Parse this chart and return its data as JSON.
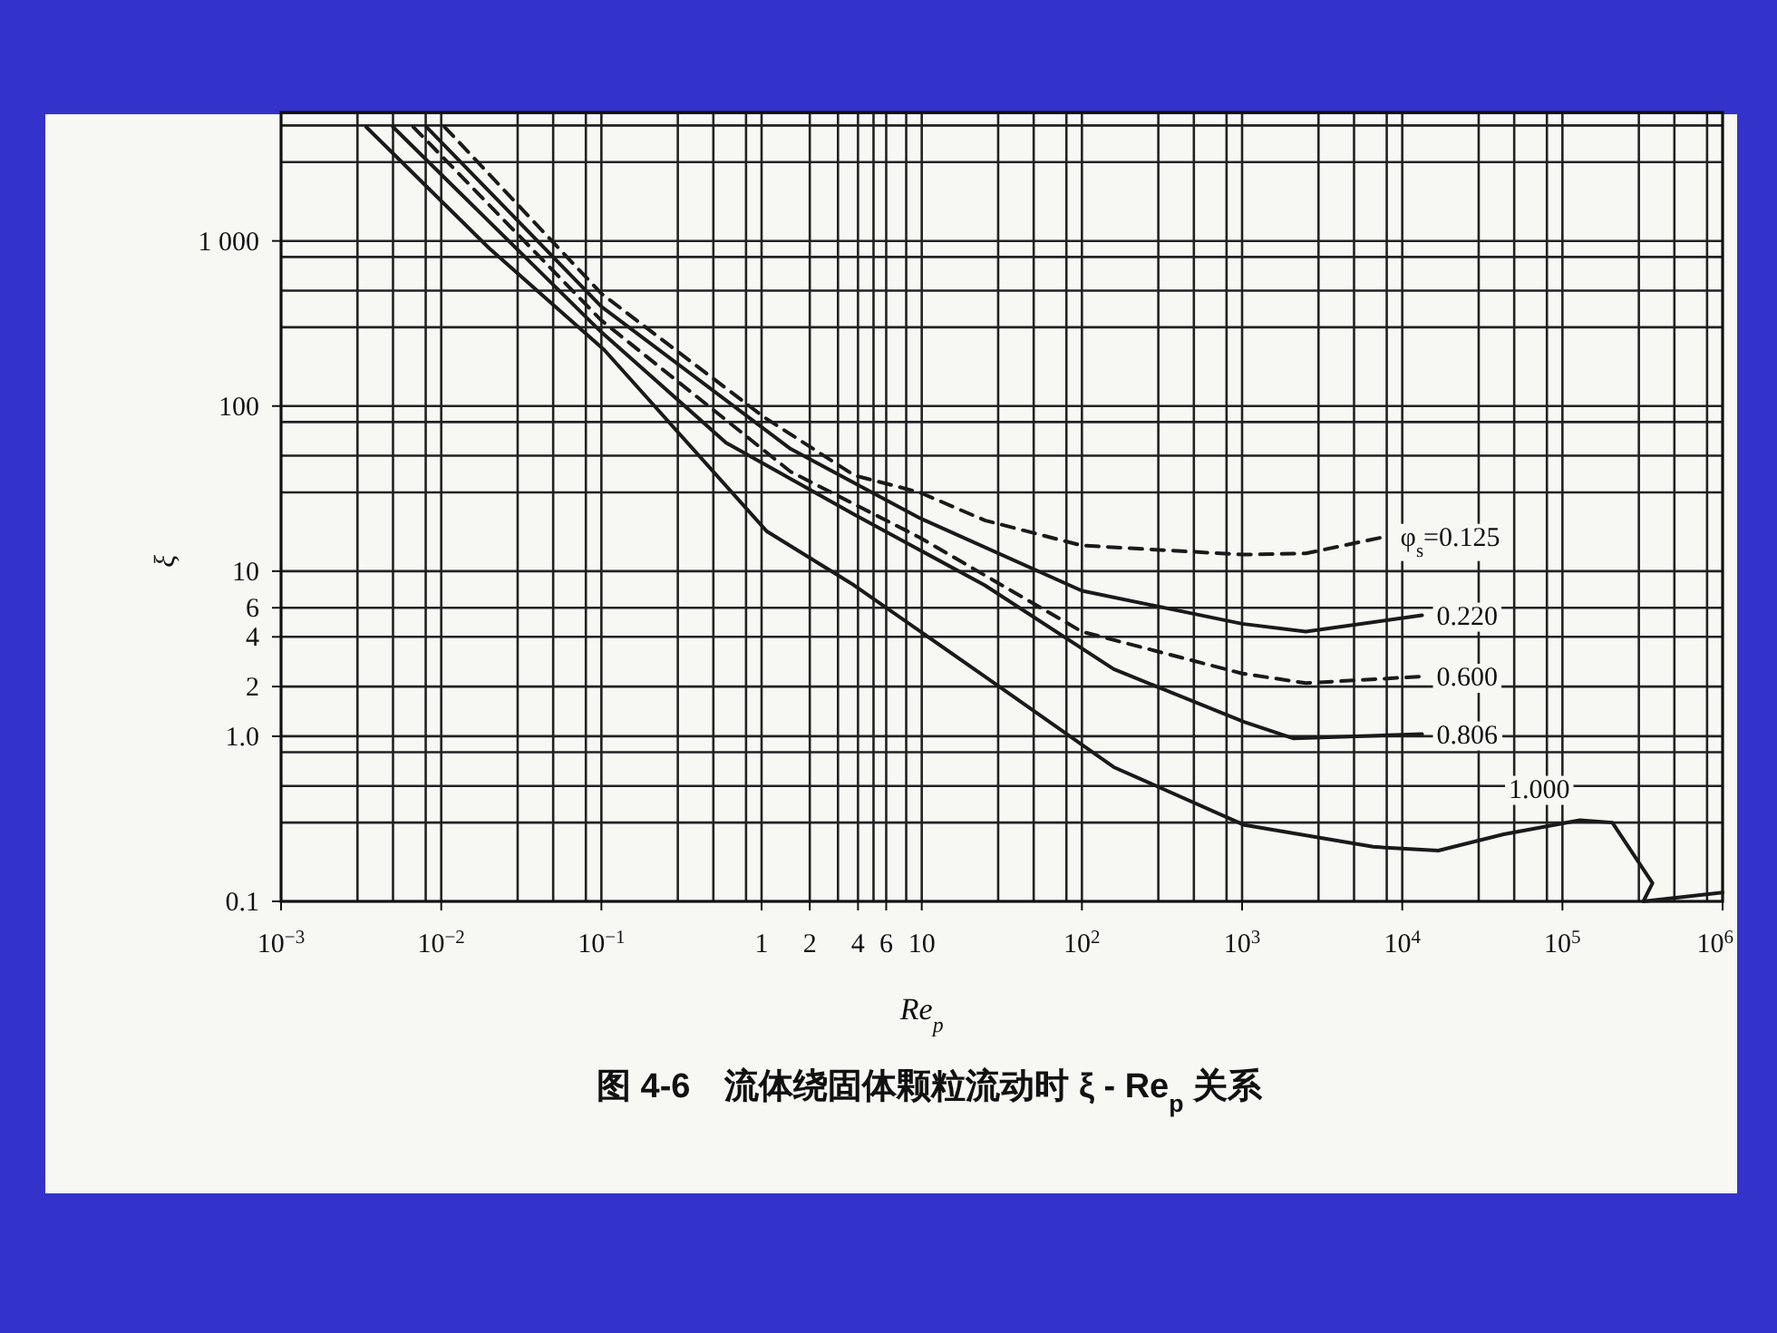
{
  "chart_data": {
    "type": "line",
    "title": "图 4-6　流体绕固体颗粒流动时 ξ - Re$_{p}$ 关系",
    "xlabel": "Re$_{p}$",
    "ylabel": "ξ",
    "log": "xy",
    "grid": true,
    "xlim": [
      0.001,
      1000000
    ],
    "ylim": [
      0.1,
      6000
    ],
    "xticks": [
      {
        "value": 0.001,
        "label": "10$^{−3}$"
      },
      {
        "value": 0.01,
        "label": "10$^{−2}$"
      },
      {
        "value": 0.1,
        "label": "10$^{−1}$"
      },
      1,
      2,
      4,
      6,
      10,
      {
        "value": 100,
        "label": "10$^{2}$"
      },
      {
        "value": 1000,
        "label": "10$^{3}$"
      },
      {
        "value": 10000,
        "label": "10$^{4}$"
      },
      {
        "value": 100000,
        "label": "10$^{5}$"
      },
      {
        "value": 1000000,
        "label": "10$^{6}$"
      }
    ],
    "yticks": [
      0.1,
      {
        "value": 1,
        "label": "1.0"
      },
      2,
      4,
      6,
      10,
      100,
      {
        "value": 1000,
        "label": "1 000"
      }
    ],
    "series": [
      {
        "name": "φ$_{s}$=0.125",
        "color": "#1a1a1a",
        "line_style": "dashed",
        "x": [
          0.0105,
          0.1,
          1.03,
          3.8,
          9.7,
          24.8,
          100,
          1000,
          2500,
          7900
        ],
        "values": [
          4900,
          480,
          86,
          38,
          30,
          20.3,
          14.3,
          12.6,
          12.8,
          16.2
        ]
      },
      {
        "name": "0.220",
        "color": "#1a1a1a",
        "line_style": "solid",
        "x": [
          0.0081,
          0.1,
          1.52,
          9.7,
          100,
          1000,
          2500,
          13300
        ],
        "values": [
          4900,
          400,
          55,
          21,
          7.6,
          4.8,
          4.3,
          5.4
        ]
      },
      {
        "name": "0.600",
        "color": "#1a1a1a",
        "line_style": "dashed",
        "x": [
          0.0067,
          0.1,
          1.52,
          9.7,
          100,
          1000,
          2500,
          13300
        ],
        "values": [
          4900,
          330,
          40,
          16,
          4.3,
          2.4,
          2.1,
          2.3
        ]
      },
      {
        "name": "0.806",
        "color": "#1a1a1a",
        "line_style": "solid",
        "x": [
          0.005,
          0.1,
          0.6,
          3.8,
          24.8,
          158,
          1030,
          2100,
          13300
        ],
        "values": [
          4900,
          280,
          60,
          22,
          8.2,
          2.55,
          1.22,
          0.97,
          1.03
        ]
      },
      {
        "name": "1.000",
        "color": "#1a1a1a",
        "line_style": "solid",
        "x": [
          0.0034,
          0.02,
          0.104,
          1.08,
          3.79,
          24.8,
          158,
          1033,
          6580,
          16800,
          43000,
          128500,
          205000,
          365000,
          320000,
          1000000
        ],
        "values": [
          4900,
          900,
          219,
          17.4,
          8.2,
          2.3,
          0.65,
          0.29,
          0.214,
          0.203,
          0.255,
          0.31,
          0.3,
          0.129,
          0.1,
          0.113
        ]
      }
    ]
  }
}
